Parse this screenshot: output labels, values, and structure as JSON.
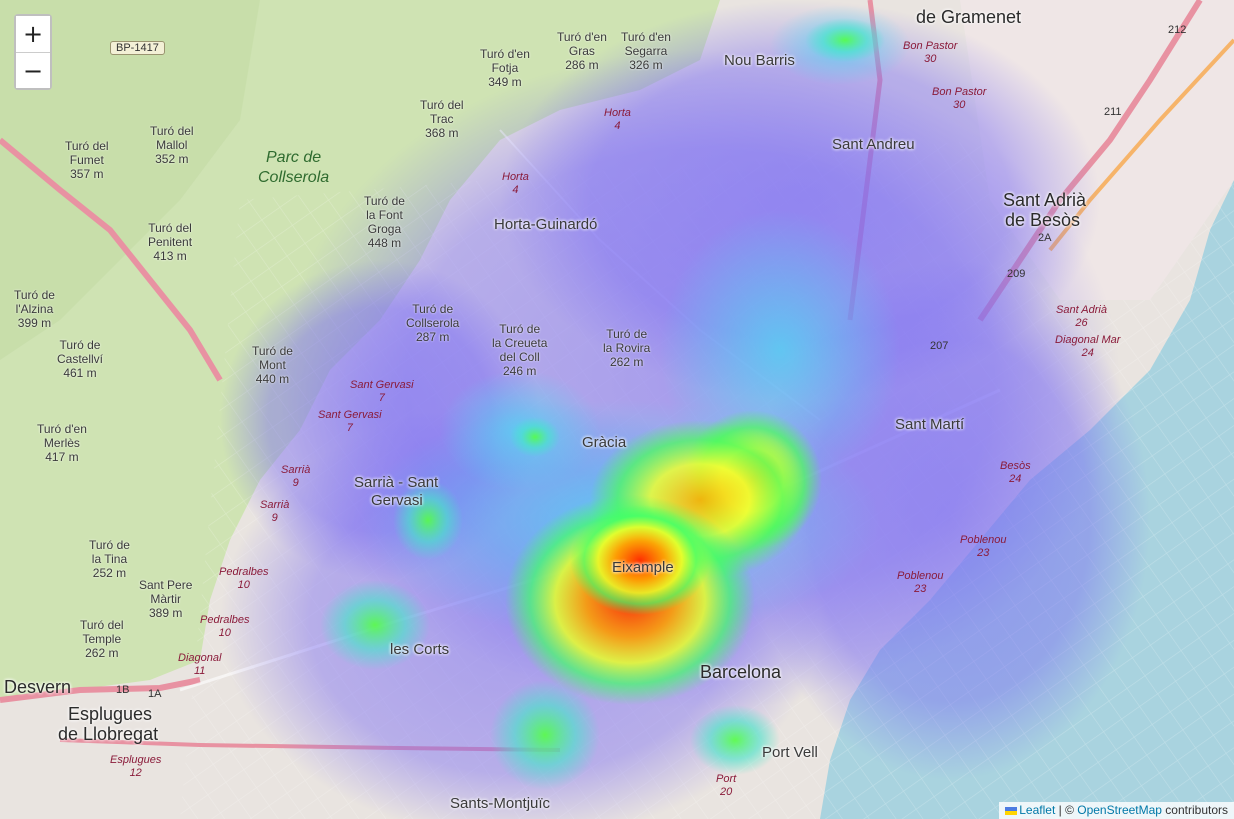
{
  "zoom": {
    "in_label": "+",
    "out_label": "−"
  },
  "attribution": {
    "leaflet": "Leaflet",
    "sep": " | © ",
    "osm": "OpenStreetMap",
    "suffix": " contributors"
  },
  "colors": {
    "sea": "#a9d3df",
    "park": "#cfe3b3",
    "urban": "#e9e4e0",
    "motorway": "#e892a2",
    "heat_low": "#6a6cf0",
    "heat_mid": "#44ff44",
    "heat_high": "#ff2a00"
  },
  "labels": {
    "districts": [
      "Nou Barris",
      "Sant Andreu",
      "Horta-Guinardó",
      "Gràcia",
      "Sant Martí",
      "Sarrià - Sant",
      "Gervasi",
      "Eixample",
      "les Corts",
      "Port Vell",
      "Sants-Montjuïc"
    ],
    "cities": [
      "Barcelona",
      "Sant Adrià",
      "de Besòs",
      "Esplugues",
      "de Llobregat",
      "de Gramenet",
      "Desvern"
    ],
    "park": [
      "Parc de",
      "Collserola"
    ],
    "peaks": [
      [
        "Turó d'en",
        "Fotja",
        "349 m"
      ],
      [
        "Turó d'en",
        "Gras",
        "286 m"
      ],
      [
        "Turó d'en",
        "Segarra",
        "326 m"
      ],
      [
        "Turó del",
        "Trac",
        "368 m"
      ],
      [
        "Turó del",
        "Mallol",
        "352 m"
      ],
      [
        "Turó del",
        "Fumet",
        "357 m"
      ],
      [
        "Turó del",
        "Penitent",
        "413 m"
      ],
      [
        "Turó de",
        "la Font",
        "Groga",
        "448 m"
      ],
      [
        "Turó de",
        "l'Alzina",
        "399 m"
      ],
      [
        "Turó de",
        "Castellví",
        "461 m"
      ],
      [
        "Turó de",
        "Collserola",
        "287 m"
      ],
      [
        "Turó de",
        "la Creueta",
        "del Coll",
        "246 m"
      ],
      [
        "Turó de",
        "la Rovira",
        "262 m"
      ],
      [
        "Turó de",
        "Mont",
        "440 m"
      ],
      [
        "Turó d'en",
        "Merlès",
        "417 m"
      ],
      [
        "Turó de",
        "la Tina",
        "252 m"
      ],
      [
        "Sant Pere",
        "Màrtir",
        "389 m"
      ],
      [
        "Turó del",
        "Temple",
        "262 m"
      ]
    ],
    "roads": [
      [
        "Bon Pastor",
        "30"
      ],
      [
        "Bon Pastor",
        "30"
      ],
      [
        "Horta",
        "4"
      ],
      [
        "Horta",
        "4"
      ],
      [
        "Sant Gervasi",
        "7"
      ],
      [
        "Sant Gervasi",
        "7"
      ],
      [
        "Sarrià",
        "9"
      ],
      [
        "Sarrià",
        "9"
      ],
      [
        "Pedralbes",
        "10"
      ],
      [
        "Pedralbes",
        "10"
      ],
      [
        "Diagonal",
        "11"
      ],
      [
        "Esplugues",
        "12"
      ],
      [
        "Sant Adrià",
        "26"
      ],
      [
        "Diagonal Mar",
        "24"
      ],
      [
        "Besòs",
        "24"
      ],
      [
        "Poblenou",
        "23"
      ],
      [
        "Poblenou",
        "23"
      ],
      [
        "Port",
        "20"
      ]
    ],
    "shields": [
      "BP-1417",
      "207",
      "209",
      "2A",
      "211",
      "212",
      "1B",
      "1A"
    ]
  }
}
